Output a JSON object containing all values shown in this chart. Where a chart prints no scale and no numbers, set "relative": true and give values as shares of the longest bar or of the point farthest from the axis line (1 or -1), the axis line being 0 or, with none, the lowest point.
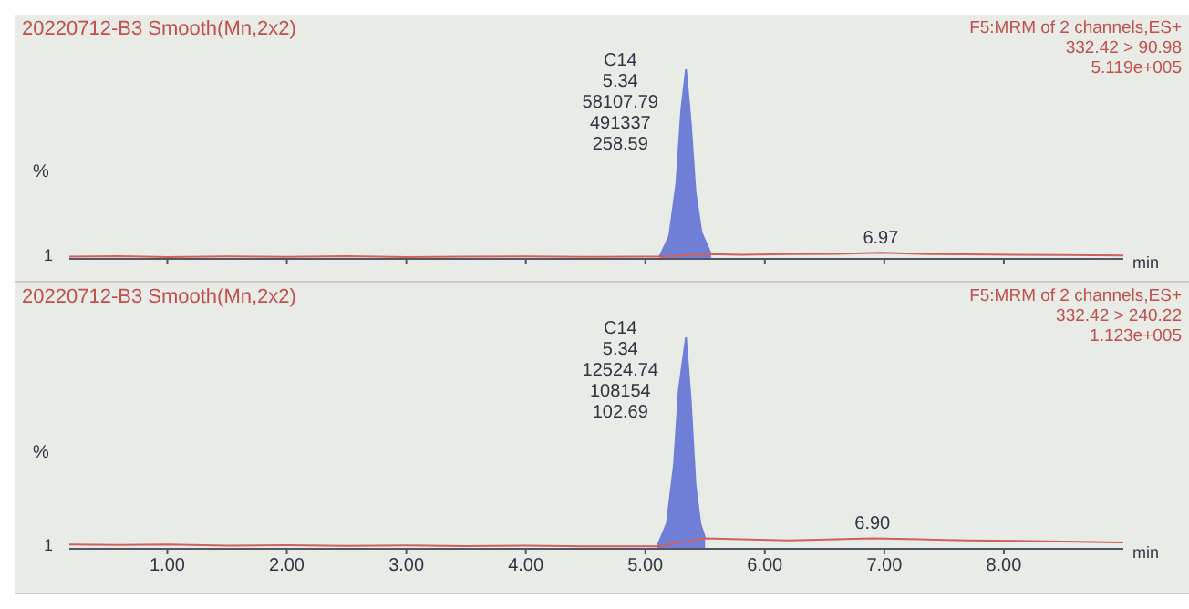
{
  "chart_data": [
    {
      "type": "line",
      "title": "20220712-B3 Smooth(Mn,2x2)",
      "subtitle": "F5:MRM of 2 channels,ES+\n332.42 > 90.98\n5.119e+005",
      "xlabel": "min",
      "ylabel": "%",
      "relative": true,
      "xlim": [
        0.18,
        9.0
      ],
      "xticks": [
        {
          "value": 1,
          "label": null
        },
        {
          "value": 2,
          "label": null
        },
        {
          "value": 3,
          "label": null
        },
        {
          "value": 4,
          "label": null
        },
        {
          "value": 5,
          "label": null
        },
        {
          "value": 6,
          "label": null
        },
        {
          "value": 7,
          "label": null
        },
        {
          "value": 8,
          "label": null
        }
      ],
      "tick_labels": false,
      "grid": false,
      "legend": false,
      "series": [
        {
          "type": "line",
          "color": "#d0605a",
          "x": [
            0.18,
            0.6,
            1.0,
            1.5,
            2.0,
            2.5,
            3.0,
            3.5,
            4.0,
            4.5,
            5.0,
            5.12,
            5.55,
            5.8,
            6.2,
            6.6,
            6.97,
            7.3,
            7.7,
            8.1,
            8.5,
            9.0
          ],
          "values": [
            0.012,
            0.014,
            0.01,
            0.013,
            0.011,
            0.014,
            0.01,
            0.012,
            0.013,
            0.011,
            0.012,
            0.012,
            0.025,
            0.022,
            0.025,
            0.027,
            0.032,
            0.026,
            0.024,
            0.022,
            0.02,
            0.018
          ]
        },
        {
          "type": "area",
          "color": "#6f7fd8",
          "x": [
            5.12,
            5.2,
            5.26,
            5.3,
            5.34,
            5.38,
            5.42,
            5.47,
            5.55
          ],
          "values": [
            0.012,
            0.12,
            0.4,
            0.78,
            1,
            0.72,
            0.35,
            0.14,
            0.025
          ]
        }
      ],
      "annotations": [
        "1",
        {
          "text": "C14\n5.34\n58107.79\n491337\n258.59",
          "x": 5.34,
          "y": 1
        },
        {
          "text": "6.97",
          "x": 6.97,
          "y": 0.032
        }
      ]
    },
    {
      "type": "line",
      "title": "20220712-B3 Smooth(Mn,2x2)",
      "subtitle": "F5:MRM of 2 channels,ES+\n332.42 > 240.22\n1.123e+005",
      "xlabel": "min",
      "ylabel": "%",
      "relative": true,
      "xlim": [
        0.18,
        9.0
      ],
      "xticks": [
        {
          "value": 1,
          "label": "1.00"
        },
        {
          "value": 2,
          "label": "2.00"
        },
        {
          "value": 3,
          "label": "3.00"
        },
        {
          "value": 4,
          "label": "4.00"
        },
        {
          "value": 5,
          "label": "5.00"
        },
        {
          "value": 6,
          "label": "6.00"
        },
        {
          "value": 7,
          "label": "7.00"
        },
        {
          "value": 8,
          "label": "8.00"
        }
      ],
      "tick_labels": "x",
      "grid": false,
      "legend": false,
      "series": [
        {
          "type": "line",
          "color": "#d0605a",
          "x": [
            0.18,
            0.6,
            1.0,
            1.5,
            2.0,
            2.5,
            3.0,
            3.5,
            4.0,
            4.5,
            5.0,
            5.1,
            5.5,
            5.8,
            6.2,
            6.6,
            6.9,
            7.3,
            7.7,
            8.1,
            8.5,
            9.0
          ],
          "values": [
            0.02,
            0.018,
            0.02,
            0.015,
            0.017,
            0.014,
            0.016,
            0.013,
            0.015,
            0.012,
            0.012,
            0.012,
            0.05,
            0.045,
            0.04,
            0.045,
            0.05,
            0.045,
            0.04,
            0.038,
            0.035,
            0.03
          ]
        },
        {
          "type": "area",
          "color": "#6f7fd8",
          "x": [
            5.1,
            5.18,
            5.24,
            5.28,
            5.34,
            5.38,
            5.42,
            5.46,
            5.5
          ],
          "values": [
            0.012,
            0.12,
            0.4,
            0.75,
            1,
            0.7,
            0.3,
            0.12,
            0.05
          ]
        }
      ],
      "annotations": [
        "1",
        {
          "text": "C14\n5.34\n12524.74\n108154\n102.69",
          "x": 5.34,
          "y": 1
        },
        {
          "text": "6.90",
          "x": 6.9,
          "y": 0.05
        }
      ]
    }
  ]
}
